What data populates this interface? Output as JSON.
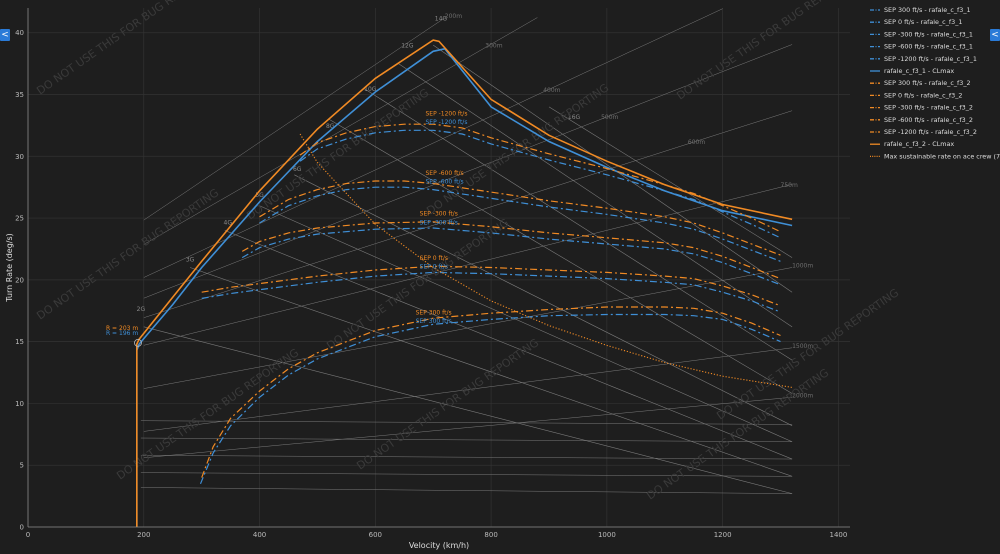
{
  "controls": {
    "left_toggle": "<",
    "right_toggle": "<"
  },
  "watermark": "DO NOT USE THIS FOR BUG REPORTING",
  "colors": {
    "background": "#1e1e1e",
    "grid": "#333333",
    "guide": "#7a7a7a",
    "blue": "#3f8fd6",
    "orange": "#f08a24",
    "accent": "#2a7bd8"
  },
  "chart_data": {
    "type": "line",
    "xlabel": "Velocity (km/h)",
    "ylabel": "Turn Rate (deg/s)",
    "xlim": [
      0,
      1420
    ],
    "ylim": [
      0,
      42
    ],
    "x_ticks": [
      0,
      200,
      400,
      600,
      800,
      1000,
      1200,
      1400
    ],
    "y_ticks": [
      0,
      5,
      10,
      15,
      20,
      25,
      30,
      35,
      40
    ],
    "grid": true,
    "legend_position": "top-right",
    "legend": [
      {
        "label": "SEP 300 ft/s - rafale_c_f3_1",
        "color": "#3f8fd6",
        "style": "dashdot"
      },
      {
        "label": "SEP 0 ft/s - rafale_c_f3_1",
        "color": "#3f8fd6",
        "style": "dashdot"
      },
      {
        "label": "SEP -300 ft/s - rafale_c_f3_1",
        "color": "#3f8fd6",
        "style": "dashdot"
      },
      {
        "label": "SEP -600 ft/s - rafale_c_f3_1",
        "color": "#3f8fd6",
        "style": "dashdot"
      },
      {
        "label": "SEP -1200 ft/s - rafale_c_f3_1",
        "color": "#3f8fd6",
        "style": "dashdot"
      },
      {
        "label": "rafale_c_f3_1 - CLmax",
        "color": "#3f8fd6",
        "style": "solid"
      },
      {
        "label": "SEP 300 ft/s - rafale_c_f3_2",
        "color": "#f08a24",
        "style": "dashdot"
      },
      {
        "label": "SEP 0 ft/s - rafale_c_f3_2",
        "color": "#f08a24",
        "style": "dashdot"
      },
      {
        "label": "SEP -300 ft/s - rafale_c_f3_2",
        "color": "#f08a24",
        "style": "dashdot"
      },
      {
        "label": "SEP -600 ft/s - rafale_c_f3_2",
        "color": "#f08a24",
        "style": "dashdot"
      },
      {
        "label": "SEP -1200 ft/s - rafale_c_f3_2",
        "color": "#f08a24",
        "style": "dashdot"
      },
      {
        "label": "rafale_c_f3_2 - CLmax",
        "color": "#f08a24",
        "style": "solid"
      },
      {
        "label": "Max sustainable rate on ace crew (7.5G)",
        "color": "#f08a24",
        "style": "dotted"
      }
    ],
    "g_lines": [
      "2G",
      "3G",
      "4G",
      "5G",
      "6G",
      "8G",
      "10G",
      "12G",
      "14G",
      "16G"
    ],
    "radius_lines": [
      "200m",
      "300m",
      "400m",
      "500m",
      "600m",
      "750m",
      "1000m",
      "1500m",
      "2000m"
    ],
    "radius_annotation": {
      "orange": "R = 203 m",
      "blue": "R = 196 m"
    },
    "series": [
      {
        "name": "rafale_c_f3_1 - CLmax",
        "color": "#3f8fd6",
        "style": "solid",
        "x": [
          188,
          188,
          192,
          250,
          300,
          400,
          500,
          600,
          700,
          720,
          800,
          900,
          1000,
          1100,
          1200,
          1320
        ],
        "y": [
          0,
          14.3,
          14.8,
          18.0,
          21.0,
          26.3,
          31.2,
          35.2,
          38.5,
          38.7,
          34.0,
          31.2,
          29.1,
          27.2,
          25.6,
          24.4
        ]
      },
      {
        "name": "rafale_c_f3_2 - CLmax",
        "color": "#f08a24",
        "style": "solid",
        "x": [
          188,
          188,
          192,
          250,
          300,
          400,
          500,
          600,
          700,
          710,
          800,
          900,
          1000,
          1100,
          1200,
          1320
        ],
        "y": [
          0,
          14.8,
          15.2,
          18.6,
          21.5,
          27.2,
          32.2,
          36.3,
          39.4,
          39.3,
          34.6,
          31.7,
          29.6,
          27.7,
          26.1,
          24.9
        ]
      },
      {
        "name": "SEP 300 ft/s - rafale_c_f3_1",
        "color": "#3f8fd6",
        "style": "dashdot",
        "x": [
          298,
          320,
          350,
          400,
          450,
          500,
          600,
          700,
          800,
          900,
          1000,
          1100,
          1150,
          1200,
          1250,
          1300
        ],
        "y": [
          3.5,
          6.0,
          8.2,
          10.5,
          12.3,
          13.6,
          15.4,
          16.4,
          16.8,
          17.1,
          17.2,
          17.2,
          17.1,
          16.8,
          16.0,
          15.0
        ]
      },
      {
        "name": "SEP 300 ft/s - rafale_c_f3_2",
        "color": "#f08a24",
        "style": "dashdot",
        "x": [
          300,
          320,
          350,
          400,
          450,
          500,
          600,
          700,
          800,
          900,
          1000,
          1100,
          1150,
          1200,
          1250,
          1300
        ],
        "y": [
          4.0,
          6.5,
          8.8,
          11.0,
          12.8,
          14.1,
          15.9,
          16.9,
          17.3,
          17.6,
          17.8,
          17.8,
          17.7,
          17.3,
          16.5,
          15.5
        ]
      },
      {
        "name": "SEP 0 ft/s - rafale_c_f3_1",
        "color": "#3f8fd6",
        "style": "dashdot",
        "x": [
          300,
          350,
          400,
          500,
          600,
          700,
          800,
          900,
          1000,
          1100,
          1150,
          1200,
          1250,
          1300
        ],
        "y": [
          18.5,
          18.9,
          19.2,
          19.8,
          20.3,
          20.6,
          20.5,
          20.3,
          20.1,
          19.8,
          19.6,
          19.0,
          18.3,
          17.4
        ]
      },
      {
        "name": "SEP 0 ft/s - rafale_c_f3_2",
        "color": "#f08a24",
        "style": "dashdot",
        "x": [
          300,
          350,
          400,
          500,
          600,
          700,
          800,
          900,
          1000,
          1100,
          1150,
          1200,
          1250,
          1300
        ],
        "y": [
          19.0,
          19.4,
          19.7,
          20.3,
          20.8,
          21.1,
          21.0,
          20.8,
          20.6,
          20.3,
          20.1,
          19.5,
          18.8,
          17.9
        ]
      },
      {
        "name": "SEP -300 ft/s - rafale_c_f3_1",
        "color": "#3f8fd6",
        "style": "dashdot",
        "x": [
          370,
          400,
          450,
          500,
          600,
          700,
          800,
          900,
          1000,
          1100,
          1150,
          1200,
          1250,
          1300
        ],
        "y": [
          21.8,
          22.6,
          23.3,
          23.7,
          24.1,
          24.2,
          23.8,
          23.3,
          22.9,
          22.5,
          22.1,
          21.4,
          20.5,
          19.6
        ]
      },
      {
        "name": "SEP -300 ft/s - rafale_c_f3_2",
        "color": "#f08a24",
        "style": "dashdot",
        "x": [
          370,
          400,
          450,
          500,
          600,
          700,
          800,
          900,
          1000,
          1100,
          1150,
          1200,
          1250,
          1300
        ],
        "y": [
          22.3,
          23.1,
          23.8,
          24.2,
          24.6,
          24.7,
          24.3,
          23.8,
          23.4,
          23.0,
          22.6,
          21.9,
          21.0,
          20.1
        ]
      },
      {
        "name": "SEP -600 ft/s - rafale_c_f3_1",
        "color": "#3f8fd6",
        "style": "dashdot",
        "x": [
          400,
          450,
          500,
          550,
          600,
          650,
          700,
          800,
          900,
          1000,
          1100,
          1150,
          1200,
          1250,
          1300
        ],
        "y": [
          24.6,
          26.0,
          26.8,
          27.3,
          27.5,
          27.5,
          27.3,
          26.6,
          25.9,
          25.3,
          24.6,
          24.1,
          23.3,
          22.4,
          21.5
        ]
      },
      {
        "name": "SEP -600 ft/s - rafale_c_f3_2",
        "color": "#f08a24",
        "style": "dashdot",
        "x": [
          400,
          450,
          500,
          550,
          600,
          650,
          700,
          800,
          900,
          1000,
          1100,
          1150,
          1200,
          1250,
          1300
        ],
        "y": [
          25.1,
          26.5,
          27.3,
          27.8,
          28.0,
          28.0,
          27.8,
          27.1,
          26.4,
          25.8,
          25.1,
          24.6,
          23.8,
          22.9,
          22.0
        ]
      },
      {
        "name": "SEP -1200 ft/s - rafale_c_f3_1",
        "color": "#3f8fd6",
        "style": "dashdot",
        "x": [
          470,
          500,
          550,
          600,
          650,
          700,
          750,
          800,
          900,
          1000,
          1100,
          1150,
          1200,
          1250,
          1300
        ],
        "y": [
          29.6,
          30.6,
          31.4,
          31.9,
          32.1,
          32.1,
          31.8,
          31.0,
          29.7,
          28.5,
          27.2,
          26.5,
          25.5,
          24.5,
          23.4
        ]
      },
      {
        "name": "SEP -1200 ft/s - rafale_c_f3_2",
        "color": "#f08a24",
        "style": "dashdot",
        "x": [
          470,
          500,
          550,
          600,
          650,
          700,
          750,
          800,
          900,
          1000,
          1100,
          1150,
          1200,
          1250,
          1300
        ],
        "y": [
          30.1,
          31.1,
          31.9,
          32.4,
          32.6,
          32.6,
          32.3,
          31.5,
          30.2,
          29.0,
          27.7,
          27.0,
          26.0,
          25.0,
          23.9
        ]
      },
      {
        "name": "Max sustainable rate on ace crew (7.5G)",
        "color": "#f08a24",
        "style": "dotted",
        "x": [
          470,
          500,
          600,
          700,
          800,
          900,
          1000,
          1100,
          1200,
          1320
        ],
        "y": [
          31.8,
          29.5,
          24.5,
          21.0,
          18.3,
          16.3,
          14.7,
          13.3,
          12.2,
          11.3
        ]
      }
    ],
    "sep_labels": [
      {
        "text": "SEP -1200 ft/s",
        "x": 735,
        "y": 33.3,
        "color": "#f08a24"
      },
      {
        "text": "SEP -1200 ft/s",
        "x": 735,
        "y": 32.6,
        "color": "#3f8fd6"
      },
      {
        "text": "SEP -600 ft/s",
        "x": 735,
        "y": 28.5,
        "color": "#f08a24"
      },
      {
        "text": "SEP -600 ft/s",
        "x": 735,
        "y": 27.8,
        "color": "#3f8fd6"
      },
      {
        "text": "SEP -300 ft/s",
        "x": 725,
        "y": 25.2,
        "color": "#f08a24"
      },
      {
        "text": "SEP -300 ft/s",
        "x": 725,
        "y": 24.5,
        "color": "#3f8fd6"
      },
      {
        "text": "SEP 0 ft/s",
        "x": 725,
        "y": 21.6,
        "color": "#f08a24"
      },
      {
        "text": "SEP 0 ft/s",
        "x": 725,
        "y": 20.9,
        "color": "#3f8fd6"
      },
      {
        "text": "SEP 300 ft/s",
        "x": 718,
        "y": 17.2,
        "color": "#f08a24"
      },
      {
        "text": "SEP 300 ft/s",
        "x": 718,
        "y": 16.5,
        "color": "#3f8fd6"
      }
    ]
  }
}
